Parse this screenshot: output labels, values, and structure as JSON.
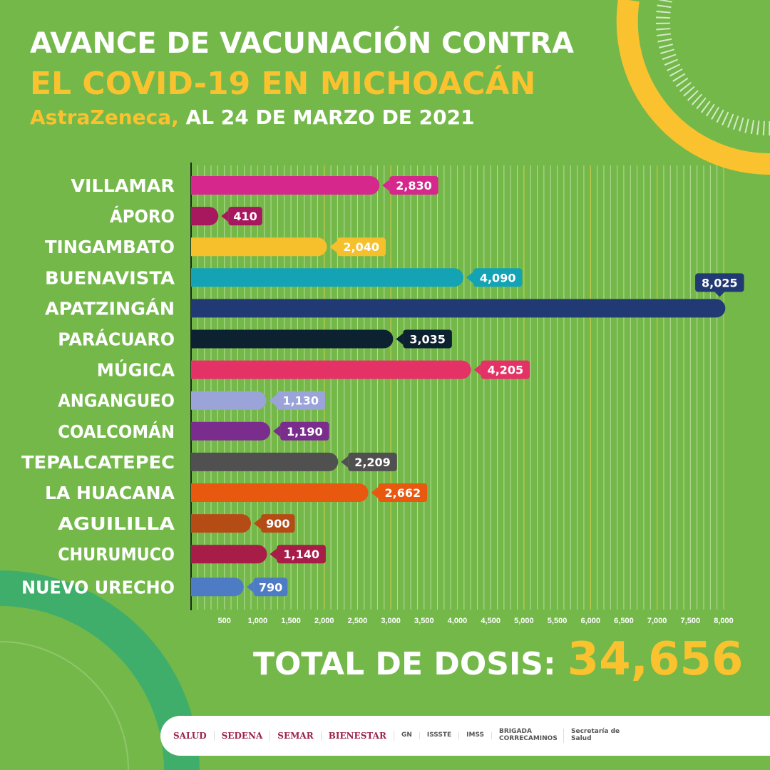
{
  "header": {
    "line1": "AVANCE DE VACUNACIÓN CONTRA",
    "line2": "EL COVID-19 EN MICHOACÁN",
    "line3_brand": "AstraZeneca,",
    "line3_rest": " AL 24 DE MARZO DE 2021"
  },
  "colors": {
    "background": "#74b84a",
    "accent": "#f9c22e"
  },
  "chart_data": {
    "type": "bar",
    "orientation": "horizontal",
    "title": "",
    "xlabel": "",
    "ylabel": "",
    "xlim": [
      0,
      8000
    ],
    "grid": true,
    "ticks": [
      "500",
      "1,000",
      "1,500",
      "2,000",
      "2,500",
      "3,000",
      "3,500",
      "4,000",
      "4,500",
      "5,000",
      "5,500",
      "6,000",
      "6,500",
      "7,000",
      "7,500",
      "8,000"
    ],
    "tick_values": [
      500,
      1000,
      1500,
      2000,
      2500,
      3000,
      3500,
      4000,
      4500,
      5000,
      5500,
      6000,
      6500,
      7000,
      7500,
      8000
    ],
    "categories": [
      "VILLAMAR",
      "ÁPORO",
      "TINGAMBATO",
      "BUENAVISTA",
      "APATZINGÁN",
      "PARÁCUARO",
      "MÚGICA",
      "ANGANGUEO",
      "COALCOMÁN",
      "TEPALCATEPEC",
      "LA HUACANA",
      "AGUILILLA",
      "CHURUMUCO",
      "NUEVO URECHO"
    ],
    "values": [
      2830,
      410,
      2040,
      4090,
      8025,
      3035,
      4205,
      1130,
      1190,
      2209,
      2662,
      900,
      1140,
      790
    ],
    "value_labels": [
      "2,830",
      "410",
      "2,040",
      "4,090",
      "8,025",
      "3,035",
      "4,205",
      "1,130",
      "1,190",
      "2,209",
      "2,662",
      "900",
      "1,140",
      "790"
    ],
    "bar_colors": [
      "#d6288c",
      "#a8185e",
      "#f6c02d",
      "#13a3b4",
      "#213a74",
      "#0d2230",
      "#e43266",
      "#9ba4d8",
      "#7b2d8e",
      "#505050",
      "#e9580f",
      "#b54c16",
      "#a81d48",
      "#4e7cc4"
    ]
  },
  "total": {
    "label": "TOTAL DE DOSIS:",
    "value": "34,656"
  },
  "footer": {
    "logos": [
      "SALUD",
      "SEDENA",
      "SEMAR",
      "BIENESTAR",
      "GN",
      "ISSSTE",
      "IMSS",
      "BRIGADA CORRECAMINOS",
      "Secretaría de Salud"
    ]
  }
}
